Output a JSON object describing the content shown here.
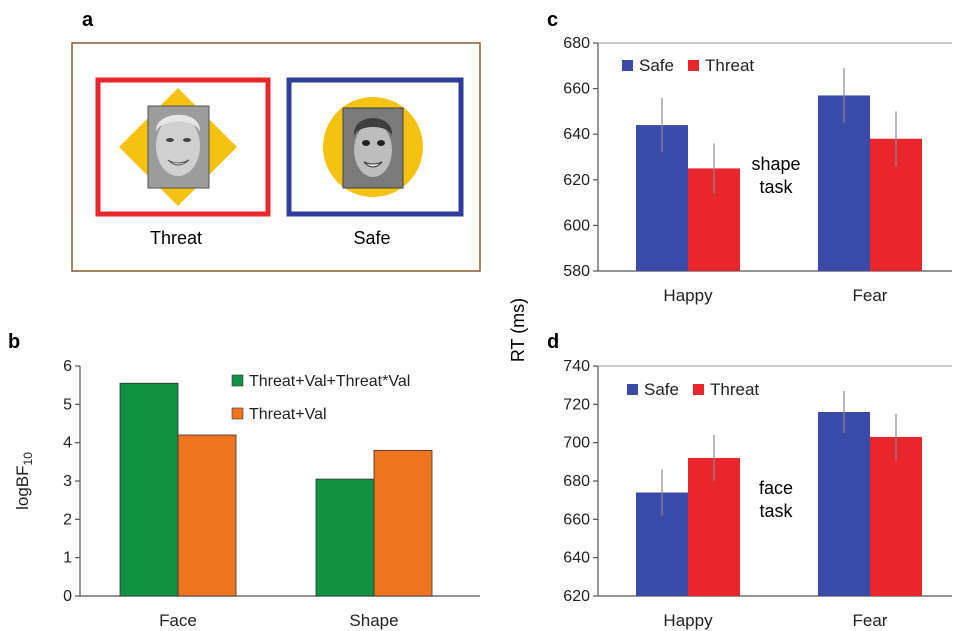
{
  "panels": {
    "a": {
      "label": "a",
      "items": [
        {
          "label": "Threat",
          "border_color": "#e8262c",
          "shape": "diamond",
          "face": "happy"
        },
        {
          "label": "Safe",
          "border_color": "#2e3d9a",
          "shape": "circle",
          "face": "fear"
        }
      ],
      "shape_color": "#f5c211"
    },
    "b": {
      "label": "b"
    },
    "c": {
      "label": "c",
      "annotation": [
        "shape",
        "task"
      ]
    },
    "d": {
      "label": "d",
      "annotation": [
        "face",
        "task"
      ]
    },
    "shared_ylabel": "RT (ms)"
  },
  "colors": {
    "safe": "#3a4aa8",
    "threat": "#e8262c",
    "green": "#119243",
    "orange": "#ef7420"
  },
  "chart_data": [
    {
      "id": "b",
      "type": "bar",
      "categories": [
        "Face",
        "Shape"
      ],
      "series": [
        {
          "name": "Threat+Val+Threat*Val",
          "color": "#119243",
          "values": [
            5.55,
            3.05
          ]
        },
        {
          "name": "Threat+Val",
          "color": "#ef7420",
          "values": [
            4.2,
            3.8
          ]
        }
      ],
      "ylabel": "logBF",
      "ylabel_sub": "10",
      "ylim": [
        0,
        6
      ],
      "yticks": [
        0,
        1,
        2,
        3,
        4,
        5,
        6
      ],
      "legend": "top-right",
      "grid": false
    },
    {
      "id": "c",
      "type": "bar",
      "categories": [
        "Happy",
        "Fear"
      ],
      "series": [
        {
          "name": "Safe",
          "color": "#3a4aa8",
          "values": [
            644,
            657
          ],
          "errors": [
            12,
            12
          ]
        },
        {
          "name": "Threat",
          "color": "#e8262c",
          "values": [
            625,
            638
          ],
          "errors": [
            11,
            12
          ]
        }
      ],
      "ylim": [
        580,
        680
      ],
      "yticks": [
        580,
        600,
        620,
        640,
        660,
        680
      ],
      "legend": "top-left",
      "grid": false
    },
    {
      "id": "d",
      "type": "bar",
      "categories": [
        "Happy",
        "Fear"
      ],
      "series": [
        {
          "name": "Safe",
          "color": "#3a4aa8",
          "values": [
            674,
            716
          ],
          "errors": [
            12,
            11
          ]
        },
        {
          "name": "Threat",
          "color": "#e8262c",
          "values": [
            692,
            703
          ],
          "errors": [
            12,
            12
          ]
        }
      ],
      "ylim": [
        620,
        740
      ],
      "yticks": [
        620,
        640,
        660,
        680,
        700,
        720,
        740
      ],
      "legend": "top-left",
      "grid": false
    }
  ]
}
